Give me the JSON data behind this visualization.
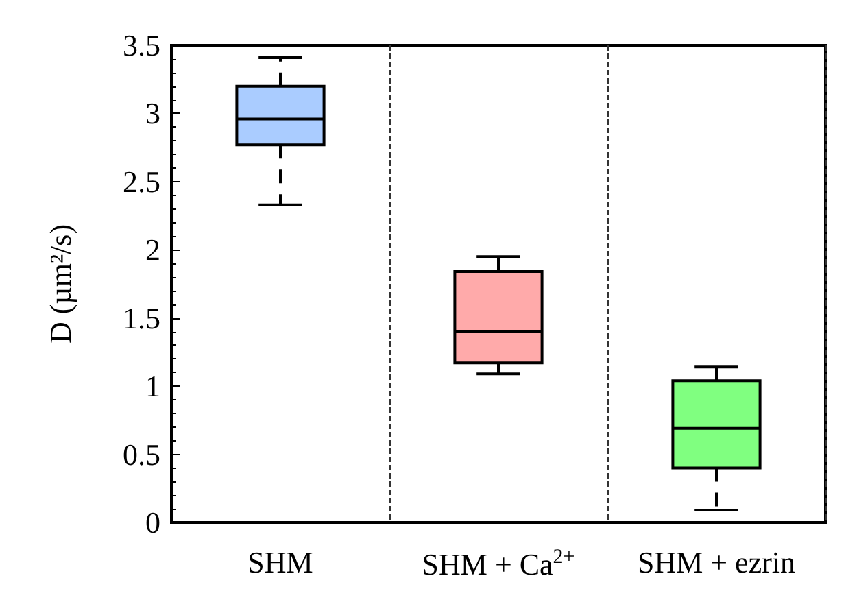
{
  "chart_data": {
    "type": "box",
    "ylabel": "D (µm²/s)",
    "categories": [
      "SHM",
      "SHM + Ca$^{2+}$",
      "SHM + ezrin"
    ],
    "boxes": [
      {
        "low": 2.33,
        "q1": 2.77,
        "median": 2.96,
        "q3": 3.2,
        "high": 3.41
      },
      {
        "low": 1.09,
        "q1": 1.17,
        "median": 1.4,
        "q3": 1.84,
        "high": 1.95
      },
      {
        "low": 0.09,
        "q1": 0.4,
        "median": 0.69,
        "q3": 1.04,
        "high": 1.14
      }
    ],
    "colors": [
      "#aaccff",
      "#ffaaaa",
      "#80ff80"
    ],
    "ylim": [
      0,
      3.5
    ],
    "yticks": [
      0,
      0.5,
      1,
      1.5,
      2,
      2.5,
      3,
      3.5
    ],
    "grid": "x",
    "line_style": "dashed"
  }
}
